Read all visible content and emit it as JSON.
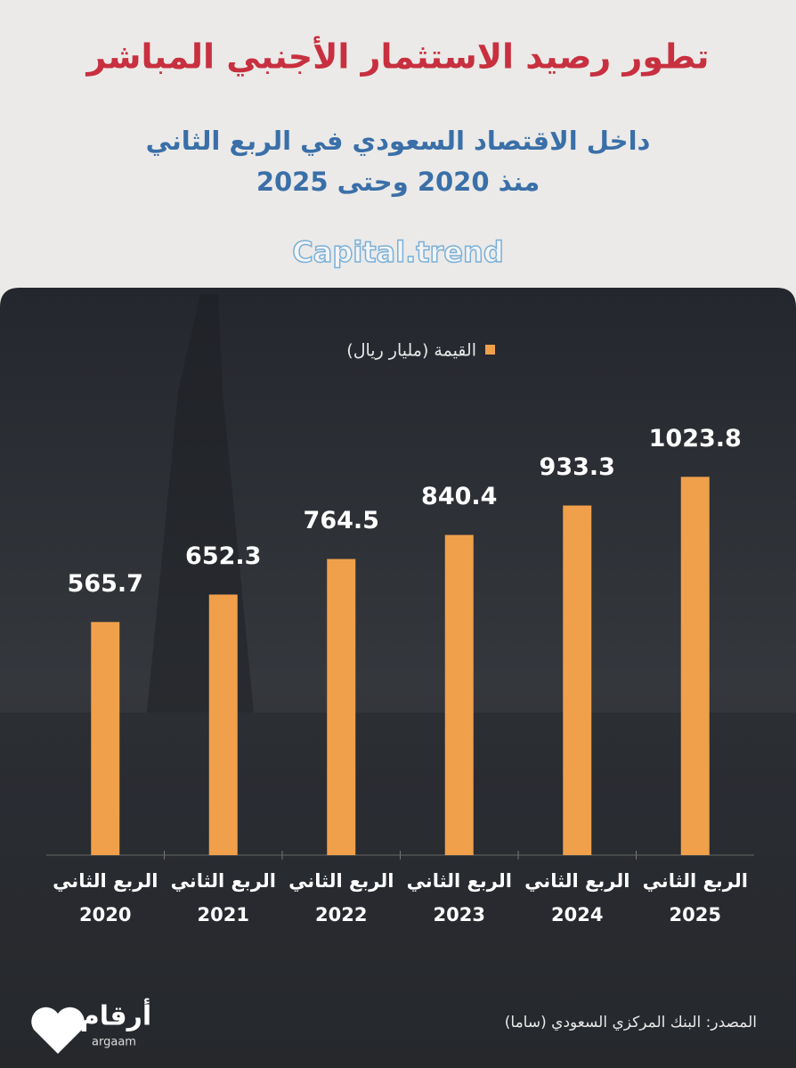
{
  "chart_data": {
    "type": "bar",
    "title": "تطور رصيد الاستثمار الأجنبي المباشر",
    "subtitle": [
      "داخل الاقتصاد السعودي في الربع الثاني",
      "منذ 2020 وحتى 2025"
    ],
    "watermark": "Capital.trend",
    "categories": [
      [
        "الربع الثاني",
        "2020"
      ],
      [
        "الربع الثاني",
        "2021"
      ],
      [
        "الربع الثاني",
        "2022"
      ],
      [
        "الربع الثاني",
        "2023"
      ],
      [
        "الربع الثاني",
        "2024"
      ],
      [
        "الربع الثاني",
        "2025"
      ]
    ],
    "series": [
      {
        "name": "القيمة (مليار ريال)",
        "color": "#f0a04b",
        "values": [
          565.7,
          652.3,
          764.5,
          840.4,
          933.3,
          1023.8
        ]
      }
    ],
    "ylim": [
      -170,
      1050
    ],
    "source": "المصدر: البنك المركزي السعودي (ساما)",
    "logo": [
      "أرقام",
      "argaam"
    ]
  }
}
